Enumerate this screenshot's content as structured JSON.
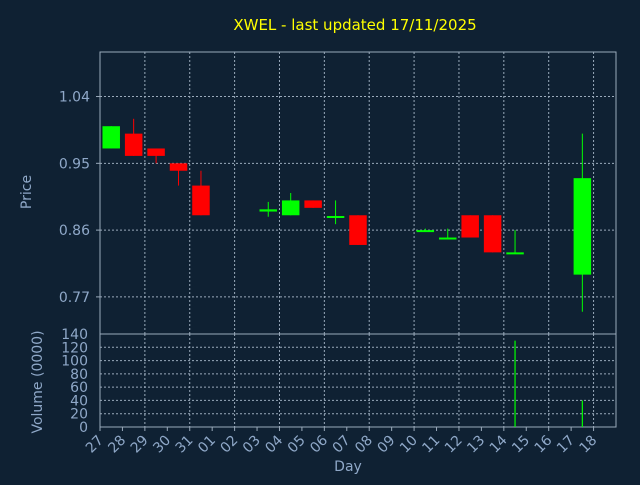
{
  "chart_data": [
    {
      "type": "candlestick",
      "title": "XWEL - last updated 17/11/2025",
      "ylabel": "Price",
      "ylim": [
        0.72,
        1.1
      ],
      "yticks": [
        "1.04",
        "0.95",
        "0.86",
        "0.77"
      ],
      "ytick_values": [
        1.04,
        0.95,
        0.86,
        0.77
      ],
      "grid": true,
      "categories": [
        "27",
        "28",
        "29",
        "30",
        "31",
        "01",
        "02",
        "03",
        "04",
        "05",
        "06",
        "07",
        "08",
        "09",
        "10",
        "11",
        "12",
        "13",
        "14",
        "15",
        "16",
        "17",
        "18"
      ],
      "candles": [
        {
          "day": "27",
          "open": 0.97,
          "close": 1.0,
          "high": 1.0,
          "low": 0.97
        },
        {
          "day": "28",
          "open": 0.99,
          "close": 0.96,
          "high": 1.01,
          "low": 0.96
        },
        {
          "day": "29",
          "open": 0.97,
          "close": 0.96,
          "high": 0.97,
          "low": 0.95
        },
        {
          "day": "30",
          "open": 0.95,
          "close": 0.94,
          "high": 0.95,
          "low": 0.92
        },
        {
          "day": "31",
          "open": 0.92,
          "close": 0.88,
          "high": 0.94,
          "low": 0.88
        },
        {
          "day": "03",
          "open": 0.885,
          "close": 0.888,
          "high": 0.898,
          "low": 0.878
        },
        {
          "day": "04",
          "open": 0.88,
          "close": 0.9,
          "high": 0.91,
          "low": 0.88
        },
        {
          "day": "05",
          "open": 0.9,
          "close": 0.89,
          "high": 0.9,
          "low": 0.89
        },
        {
          "day": "06",
          "open": 0.877,
          "close": 0.879,
          "high": 0.9,
          "low": 0.868
        },
        {
          "day": "07",
          "open": 0.88,
          "close": 0.84,
          "high": 0.88,
          "low": 0.84
        },
        {
          "day": "10",
          "open": 0.858,
          "close": 0.86,
          "high": 0.862,
          "low": 0.858
        },
        {
          "day": "11",
          "open": 0.848,
          "close": 0.85,
          "high": 0.862,
          "low": 0.848
        },
        {
          "day": "12",
          "open": 0.88,
          "close": 0.85,
          "high": 0.88,
          "low": 0.85
        },
        {
          "day": "13",
          "open": 0.88,
          "close": 0.83,
          "high": 0.88,
          "low": 0.83
        },
        {
          "day": "14",
          "open": 0.828,
          "close": 0.83,
          "high": 0.86,
          "low": 0.828
        },
        {
          "day": "17",
          "open": 0.8,
          "close": 0.93,
          "high": 0.99,
          "low": 0.75
        }
      ],
      "colors": {
        "up": "#00ff00",
        "down": "#ff0000"
      }
    },
    {
      "type": "bar",
      "xlabel": "Day",
      "ylabel": "Volume (0000)",
      "ylim": [
        0,
        140
      ],
      "yticks": [
        "0",
        "20",
        "40",
        "60",
        "80",
        "100",
        "120",
        "140"
      ],
      "ytick_values": [
        0,
        20,
        40,
        60,
        80,
        100,
        120,
        140
      ],
      "categories": [
        "27",
        "28",
        "29",
        "30",
        "31",
        "01",
        "02",
        "03",
        "04",
        "05",
        "06",
        "07",
        "08",
        "09",
        "10",
        "11",
        "12",
        "13",
        "14",
        "15",
        "16",
        "17",
        "18"
      ],
      "volumes": [
        {
          "day": "14",
          "value": 130,
          "color": "#00ff00"
        },
        {
          "day": "17",
          "value": 40,
          "color": "#00ff00"
        }
      ]
    }
  ],
  "colors": {
    "background": "#0f2133",
    "title": "#ffff00",
    "axis_text": "#8fa8c8",
    "grid": "#9aaabb"
  }
}
